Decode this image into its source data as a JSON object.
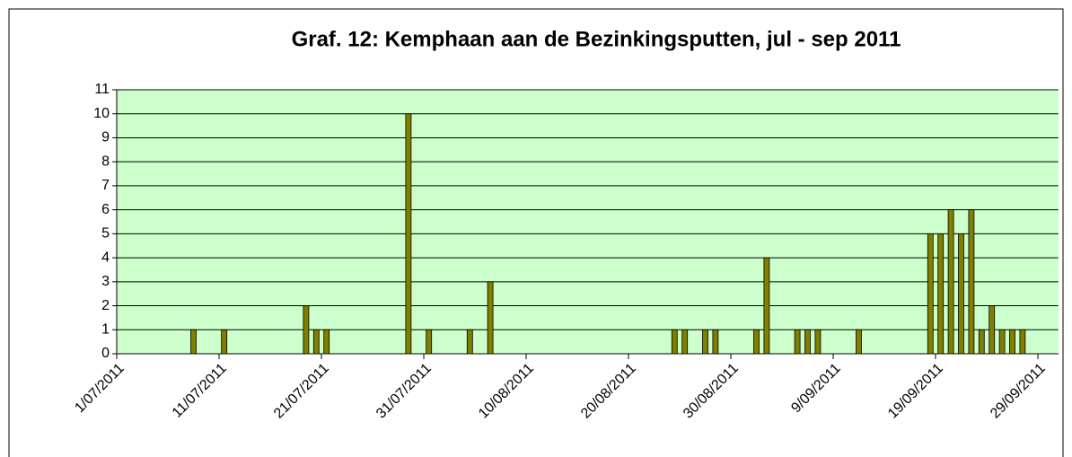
{
  "chart_data": {
    "type": "bar",
    "title": "Graf. 12: Kemphaan aan de Bezinkingsputten, jul - sep 2011",
    "categories": [
      "1/07/2011",
      null,
      null,
      null,
      null,
      null,
      null,
      null,
      null,
      null,
      "11/07/2011",
      null,
      null,
      null,
      null,
      null,
      null,
      null,
      null,
      null,
      "21/07/2011",
      null,
      null,
      null,
      null,
      null,
      null,
      null,
      null,
      null,
      "31/07/2011",
      null,
      null,
      null,
      null,
      null,
      null,
      null,
      null,
      null,
      "10/08/2011",
      null,
      null,
      null,
      null,
      null,
      null,
      null,
      null,
      null,
      "20/08/2011",
      null,
      null,
      null,
      null,
      null,
      null,
      null,
      null,
      null,
      "30/08/2011",
      null,
      null,
      null,
      null,
      null,
      null,
      null,
      null,
      null,
      "9/09/2011",
      null,
      null,
      null,
      null,
      null,
      null,
      null,
      null,
      null,
      "19/09/2011",
      null,
      null,
      null,
      null,
      null,
      null,
      null,
      null,
      null,
      "29/09/2011",
      null
    ],
    "values": [
      0,
      0,
      0,
      0,
      0,
      0,
      0,
      1,
      0,
      0,
      1,
      0,
      0,
      0,
      0,
      0,
      0,
      0,
      2,
      1,
      1,
      0,
      0,
      0,
      0,
      0,
      0,
      0,
      10,
      0,
      1,
      0,
      0,
      0,
      1,
      0,
      3,
      0,
      0,
      0,
      0,
      0,
      0,
      0,
      0,
      0,
      0,
      0,
      0,
      0,
      0,
      0,
      0,
      0,
      1,
      1,
      0,
      1,
      1,
      0,
      0,
      0,
      1,
      4,
      0,
      0,
      1,
      1,
      1,
      0,
      0,
      0,
      1,
      0,
      0,
      0,
      0,
      0,
      0,
      5,
      5,
      6,
      5,
      6,
      1,
      2,
      1,
      1,
      1,
      0,
      0,
      0
    ],
    "color": "#808000",
    "ylim": [
      0,
      11
    ],
    "yticks": [
      0,
      1,
      2,
      3,
      4,
      5,
      6,
      7,
      8,
      9,
      10,
      11
    ],
    "grid": true
  }
}
